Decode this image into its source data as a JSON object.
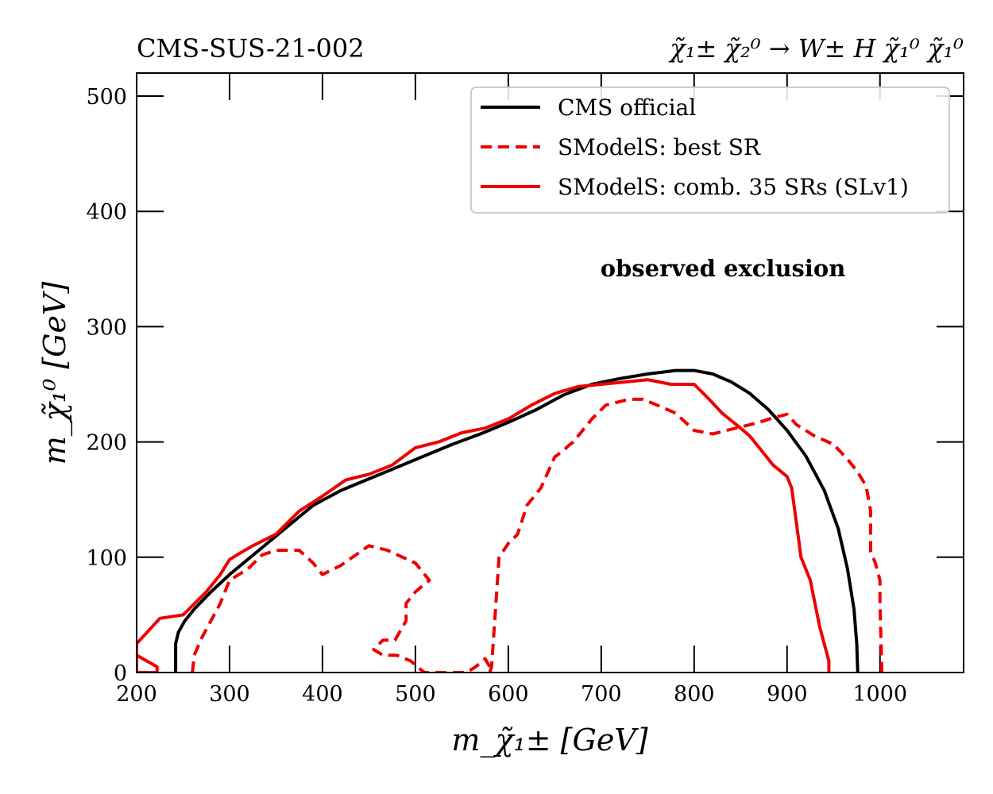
{
  "chart_data": {
    "type": "line",
    "title_left": "CMS-SUS-21-002",
    "title_right": "χ̃₁± χ̃₂⁰ → W± H χ̃₁⁰ χ̃₁⁰",
    "xlabel": "m_χ̃₁± [GeV]",
    "ylabel": "m_χ̃₁⁰ [GeV]",
    "xlim": [
      200,
      1090
    ],
    "ylim": [
      0,
      520
    ],
    "xticks": [
      200,
      300,
      400,
      500,
      600,
      700,
      800,
      900,
      1000
    ],
    "yticks": [
      0,
      100,
      200,
      300,
      400,
      500
    ],
    "annotation": "observed exclusion",
    "legend_position": "top-right",
    "series": [
      {
        "name": "CMS official",
        "color": "#000000",
        "style": "solid",
        "x": [
          242,
          242,
          245,
          252,
          262,
          280,
          300,
          330,
          360,
          390,
          420,
          450,
          480,
          510,
          540,
          570,
          600,
          630,
          660,
          690,
          720,
          750,
          780,
          800,
          820,
          840,
          860,
          880,
          900,
          920,
          940,
          955,
          965,
          972,
          975,
          976
        ],
        "y": [
          0,
          25,
          35,
          45,
          55,
          70,
          85,
          105,
          125,
          145,
          158,
          168,
          178,
          188,
          198,
          207,
          217,
          228,
          241,
          250,
          255,
          259,
          262,
          262,
          259,
          252,
          242,
          228,
          210,
          188,
          158,
          125,
          90,
          55,
          25,
          0
        ]
      },
      {
        "name": "SModelS: best SR",
        "color": "#ee0000",
        "style": "dashed",
        "x": [
          260,
          262,
          270,
          280,
          290,
          300,
          310,
          320,
          335,
          350,
          375,
          390,
          400,
          420,
          450,
          470,
          500,
          510,
          515,
          500,
          490,
          490,
          478,
          465,
          455,
          465,
          480,
          495,
          505,
          510,
          525,
          540,
          555,
          565,
          575,
          580,
          580,
          582,
          590,
          600,
          610,
          620,
          625,
          635,
          650,
          660,
          665,
          670,
          690,
          700,
          705,
          720,
          730,
          745,
          760,
          780,
          800,
          820,
          845,
          870,
          885,
          900,
          910,
          920,
          930,
          950,
          965,
          975,
          985,
          990,
          990,
          995,
          1000,
          1000,
          1001,
          1002
        ],
        "y": [
          0,
          15,
          30,
          45,
          60,
          80,
          85,
          90,
          102,
          106,
          106,
          95,
          85,
          93,
          110,
          106,
          95,
          85,
          80,
          70,
          60,
          45,
          28,
          28,
          20,
          15,
          15,
          10,
          3,
          0,
          0,
          0,
          0,
          5,
          12,
          5,
          0,
          5,
          100,
          112,
          120,
          145,
          150,
          160,
          187,
          193,
          197,
          200,
          220,
          228,
          232,
          235,
          237,
          237,
          232,
          225,
          210,
          207,
          212,
          217,
          221,
          224,
          215,
          210,
          205,
          198,
          185,
          175,
          162,
          140,
          105,
          95,
          80,
          60,
          30,
          0
        ]
      },
      {
        "name": "SModelS: comb. 35 SRs (SLv1)",
        "color": "#ee0000",
        "style": "solid",
        "x": [
          200,
          222,
          222,
          200,
          200,
          225,
          250,
          260,
          275,
          290,
          300,
          310,
          325,
          350,
          375,
          400,
          425,
          450,
          475,
          500,
          525,
          550,
          575,
          600,
          625,
          650,
          675,
          700,
          725,
          750,
          775,
          800,
          815,
          830,
          850,
          860,
          875,
          885,
          900,
          905,
          910,
          915,
          925,
          935,
          945,
          945
        ],
        "y": [
          15,
          5,
          0,
          0,
          25,
          47,
          50,
          58,
          70,
          85,
          98,
          103,
          110,
          120,
          140,
          153,
          167,
          172,
          180,
          195,
          200,
          208,
          212,
          220,
          232,
          242,
          248,
          250,
          252,
          254,
          250,
          250,
          238,
          225,
          212,
          205,
          190,
          180,
          170,
          160,
          130,
          100,
          80,
          40,
          10,
          0
        ]
      }
    ]
  }
}
